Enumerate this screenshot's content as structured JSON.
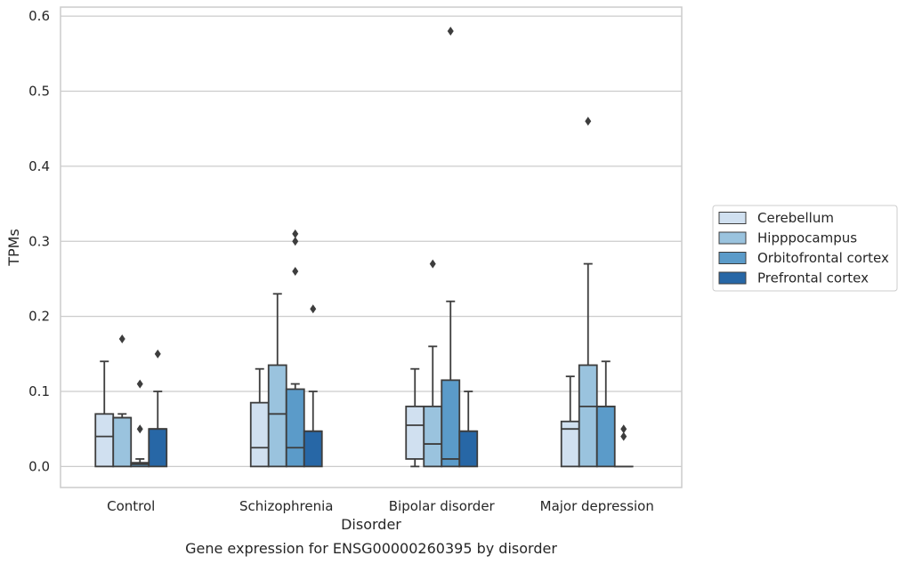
{
  "chart_data": {
    "type": "box",
    "caption": "Gene expression for ENSG00000260395 by disorder",
    "xlabel": "Disorder",
    "ylabel": "TPMs",
    "ylim": [
      -0.028,
      0.612
    ],
    "yticks": [
      "0.0",
      "0.1",
      "0.2",
      "0.3",
      "0.4",
      "0.5",
      "0.6"
    ],
    "ytick_values": [
      0,
      0.1,
      0.2,
      0.3,
      0.4,
      0.5,
      0.6
    ],
    "grid": "horizontal",
    "legend_position": "right",
    "categories": [
      "Control",
      "Schizophrenia",
      "Bipolar disorder",
      "Major depression"
    ],
    "series": [
      {
        "name": "Cerebellum",
        "color": "#d0e0f0",
        "boxes": [
          {
            "category": "Control",
            "whisker_low": 0.0,
            "q1": 0.0,
            "median": 0.04,
            "q3": 0.07,
            "whisker_high": 0.14,
            "outliers": []
          },
          {
            "category": "Schizophrenia",
            "whisker_low": 0.0,
            "q1": 0.0,
            "median": 0.025,
            "q3": 0.085,
            "whisker_high": 0.13,
            "outliers": []
          },
          {
            "category": "Bipolar disorder",
            "whisker_low": 0.0,
            "q1": 0.01,
            "median": 0.055,
            "q3": 0.08,
            "whisker_high": 0.13,
            "outliers": []
          },
          {
            "category": "Major depression",
            "whisker_low": 0.0,
            "q1": 0.0,
            "median": 0.05,
            "q3": 0.06,
            "whisker_high": 0.12,
            "outliers": []
          }
        ]
      },
      {
        "name": "Hipppocampus",
        "color": "#9ac3de",
        "boxes": [
          {
            "category": "Control",
            "whisker_low": 0.0,
            "q1": 0.0,
            "median": 0.065,
            "q3": 0.065,
            "whisker_high": 0.07,
            "outliers": [
              0.17
            ]
          },
          {
            "category": "Schizophrenia",
            "whisker_low": 0.0,
            "q1": 0.0,
            "median": 0.07,
            "q3": 0.135,
            "whisker_high": 0.23,
            "outliers": []
          },
          {
            "category": "Bipolar disorder",
            "whisker_low": 0.0,
            "q1": 0.0,
            "median": 0.03,
            "q3": 0.08,
            "whisker_high": 0.16,
            "outliers": [
              0.27
            ]
          },
          {
            "category": "Major depression",
            "whisker_low": 0.0,
            "q1": 0.0,
            "median": 0.08,
            "q3": 0.135,
            "whisker_high": 0.27,
            "outliers": [
              0.46
            ]
          }
        ]
      },
      {
        "name": "Orbitofrontal cortex",
        "color": "#5b9bc9",
        "boxes": [
          {
            "category": "Control",
            "whisker_low": 0.0,
            "q1": 0.0,
            "median": 0.003,
            "q3": 0.005,
            "whisker_high": 0.01,
            "outliers": [
              0.05,
              0.11
            ]
          },
          {
            "category": "Schizophrenia",
            "whisker_low": 0.0,
            "q1": 0.0,
            "median": 0.025,
            "q3": 0.103,
            "whisker_high": 0.11,
            "outliers": [
              0.26,
              0.3,
              0.31
            ]
          },
          {
            "category": "Bipolar disorder",
            "whisker_low": 0.0,
            "q1": 0.0,
            "median": 0.01,
            "q3": 0.115,
            "whisker_high": 0.22,
            "outliers": [
              0.58
            ]
          },
          {
            "category": "Major depression",
            "whisker_low": 0.0,
            "q1": 0.0,
            "median": 0.08,
            "q3": 0.08,
            "whisker_high": 0.14,
            "outliers": []
          }
        ]
      },
      {
        "name": "Prefrontal cortex",
        "color": "#2767a6",
        "boxes": [
          {
            "category": "Control",
            "whisker_low": 0.0,
            "q1": 0.0,
            "median": 0.05,
            "q3": 0.05,
            "whisker_high": 0.1,
            "outliers": [
              0.15
            ]
          },
          {
            "category": "Schizophrenia",
            "whisker_low": 0.0,
            "q1": 0.0,
            "median": 0.047,
            "q3": 0.047,
            "whisker_high": 0.1,
            "outliers": [
              0.21
            ]
          },
          {
            "category": "Bipolar disorder",
            "whisker_low": 0.0,
            "q1": 0.0,
            "median": 0.047,
            "q3": 0.047,
            "whisker_high": 0.1,
            "outliers": []
          },
          {
            "category": "Major depression",
            "whisker_low": 0.0,
            "q1": 0.0,
            "median": 0.0,
            "q3": 0.0,
            "whisker_high": 0.0,
            "outliers": [
              0.04,
              0.05
            ]
          }
        ]
      }
    ]
  }
}
